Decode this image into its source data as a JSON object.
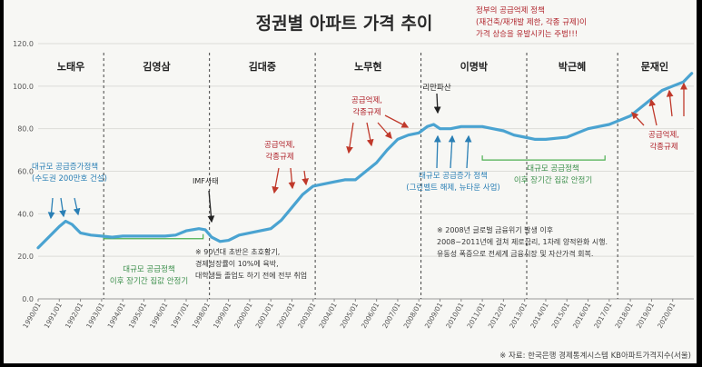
{
  "chart_data": {
    "type": "line",
    "title": "정권별 아파트 가격 추이",
    "ylim": [
      0,
      120
    ],
    "yticks": [
      "0.0",
      "20.0",
      "40.0",
      "60.0",
      "80.0",
      "100.0",
      "120.0"
    ],
    "xticks": [
      "1990/01",
      "1991/01",
      "1992/01",
      "1993/01",
      "1994/01",
      "1995/01",
      "1996/01",
      "1997/01",
      "1998/01",
      "1999/01",
      "2000/01",
      "2001/01",
      "2002/01",
      "2003/01",
      "2004/01",
      "2005/01",
      "2006/01",
      "2007/01",
      "2008/01",
      "2009/01",
      "2010/01",
      "2011/01",
      "2012/01",
      "2013/01",
      "2014/01",
      "2015/01",
      "2016/01",
      "2017/01",
      "2018/01",
      "2019/01",
      "2020/01"
    ],
    "series": [
      {
        "color": "#4aa3d1",
        "x": [
          1990.0,
          1990.5,
          1991.0,
          1991.3,
          1991.6,
          1992.0,
          1992.5,
          1993.0,
          1993.5,
          1994.0,
          1995.0,
          1996.0,
          1996.5,
          1997.0,
          1997.6,
          1997.9,
          1998.2,
          1998.6,
          1999.0,
          1999.5,
          2000.0,
          2000.5,
          2001.0,
          2001.5,
          2002.0,
          2002.5,
          2003.0,
          2003.5,
          2004.0,
          2004.5,
          2005.0,
          2005.5,
          2006.0,
          2006.5,
          2007.0,
          2007.5,
          2008.0,
          2008.4,
          2008.7,
          2009.0,
          2009.5,
          2010.0,
          2010.5,
          2011.0,
          2011.5,
          2012.0,
          2012.5,
          2013.0,
          2013.5,
          2014.0,
          2014.5,
          2015.0,
          2015.5,
          2016.0,
          2016.5,
          2017.0,
          2017.5,
          2018.0,
          2018.5,
          2019.0,
          2019.5,
          2020.0,
          2020.5,
          2020.9
        ],
        "values": [
          24,
          29,
          34,
          36.5,
          35,
          31,
          30,
          29.5,
          29,
          29.5,
          29.5,
          29.5,
          30,
          32,
          33,
          32.5,
          29,
          27,
          27.5,
          30,
          31,
          32,
          33,
          37,
          43,
          49,
          53,
          54,
          55,
          56,
          56,
          60,
          64,
          70,
          75,
          77,
          78,
          81,
          82,
          80,
          80,
          81,
          81,
          81,
          80,
          79,
          77,
          76,
          75,
          75,
          75.5,
          76,
          78,
          80,
          81,
          82,
          84,
          86,
          90,
          94,
          98,
          100,
          102,
          106
        ]
      }
    ],
    "periods": [
      {
        "name": "노태우",
        "start": 1990.0,
        "end": 1993.1
      },
      {
        "name": "김영삼",
        "start": 1993.1,
        "end": 1998.1
      },
      {
        "name": "김대중",
        "start": 1998.1,
        "end": 2003.1
      },
      {
        "name": "노무현",
        "start": 2003.1,
        "end": 2008.1
      },
      {
        "name": "이명박",
        "start": 2008.1,
        "end": 2013.1
      },
      {
        "name": "박근혜",
        "start": 2013.1,
        "end": 2017.4
      },
      {
        "name": "문재인",
        "start": 2017.4,
        "end": 2021.0
      }
    ],
    "top_note": [
      "정부의 공급억제 정책",
      "(재건축/재개발 제한, 각종 규제)이",
      "가격 상승을 유발시키는 주범!!!"
    ],
    "annotations": {
      "supply_1991": [
        "대규모 공급증가정책",
        "(수도권 200만호 건설)"
      ],
      "stable_1993": [
        "대규모 공급정책",
        "이후 장기간 집값 안정기"
      ],
      "imf": "IMF사태",
      "note_90s": [
        "※ 90년대 초반은 초호황기,",
        "경제성장률이 10%에 육박,",
        "대학생들 졸업도 하기 전에 전부 취업"
      ],
      "reg_2001": [
        "공급억제,",
        "각종규제"
      ],
      "reg_2005": [
        "공급억제,",
        "각종규제"
      ],
      "lehman": "리만파산",
      "supply_2009": [
        "대규모 공급증가 정책",
        "(그린벨트 해제, 뉴타운 사업)"
      ],
      "stable_2013": [
        "대규모 공급정책",
        "이후 장기간 집값 안정기"
      ],
      "note_2008": [
        "※ 2008년 글로벌 금융위기 발생 이후",
        "2008~2011년에 걸쳐 제로금리, 1차례 양적완화 시행.",
        "유동성 폭증으로 전세계 금융시장 및 자산가격 회복."
      ],
      "reg_2019": [
        "공급억제,",
        "각종규제"
      ]
    },
    "source": "※ 자료: 한국은행 경제통계시스템 KB아파트가격지수(서울)"
  }
}
